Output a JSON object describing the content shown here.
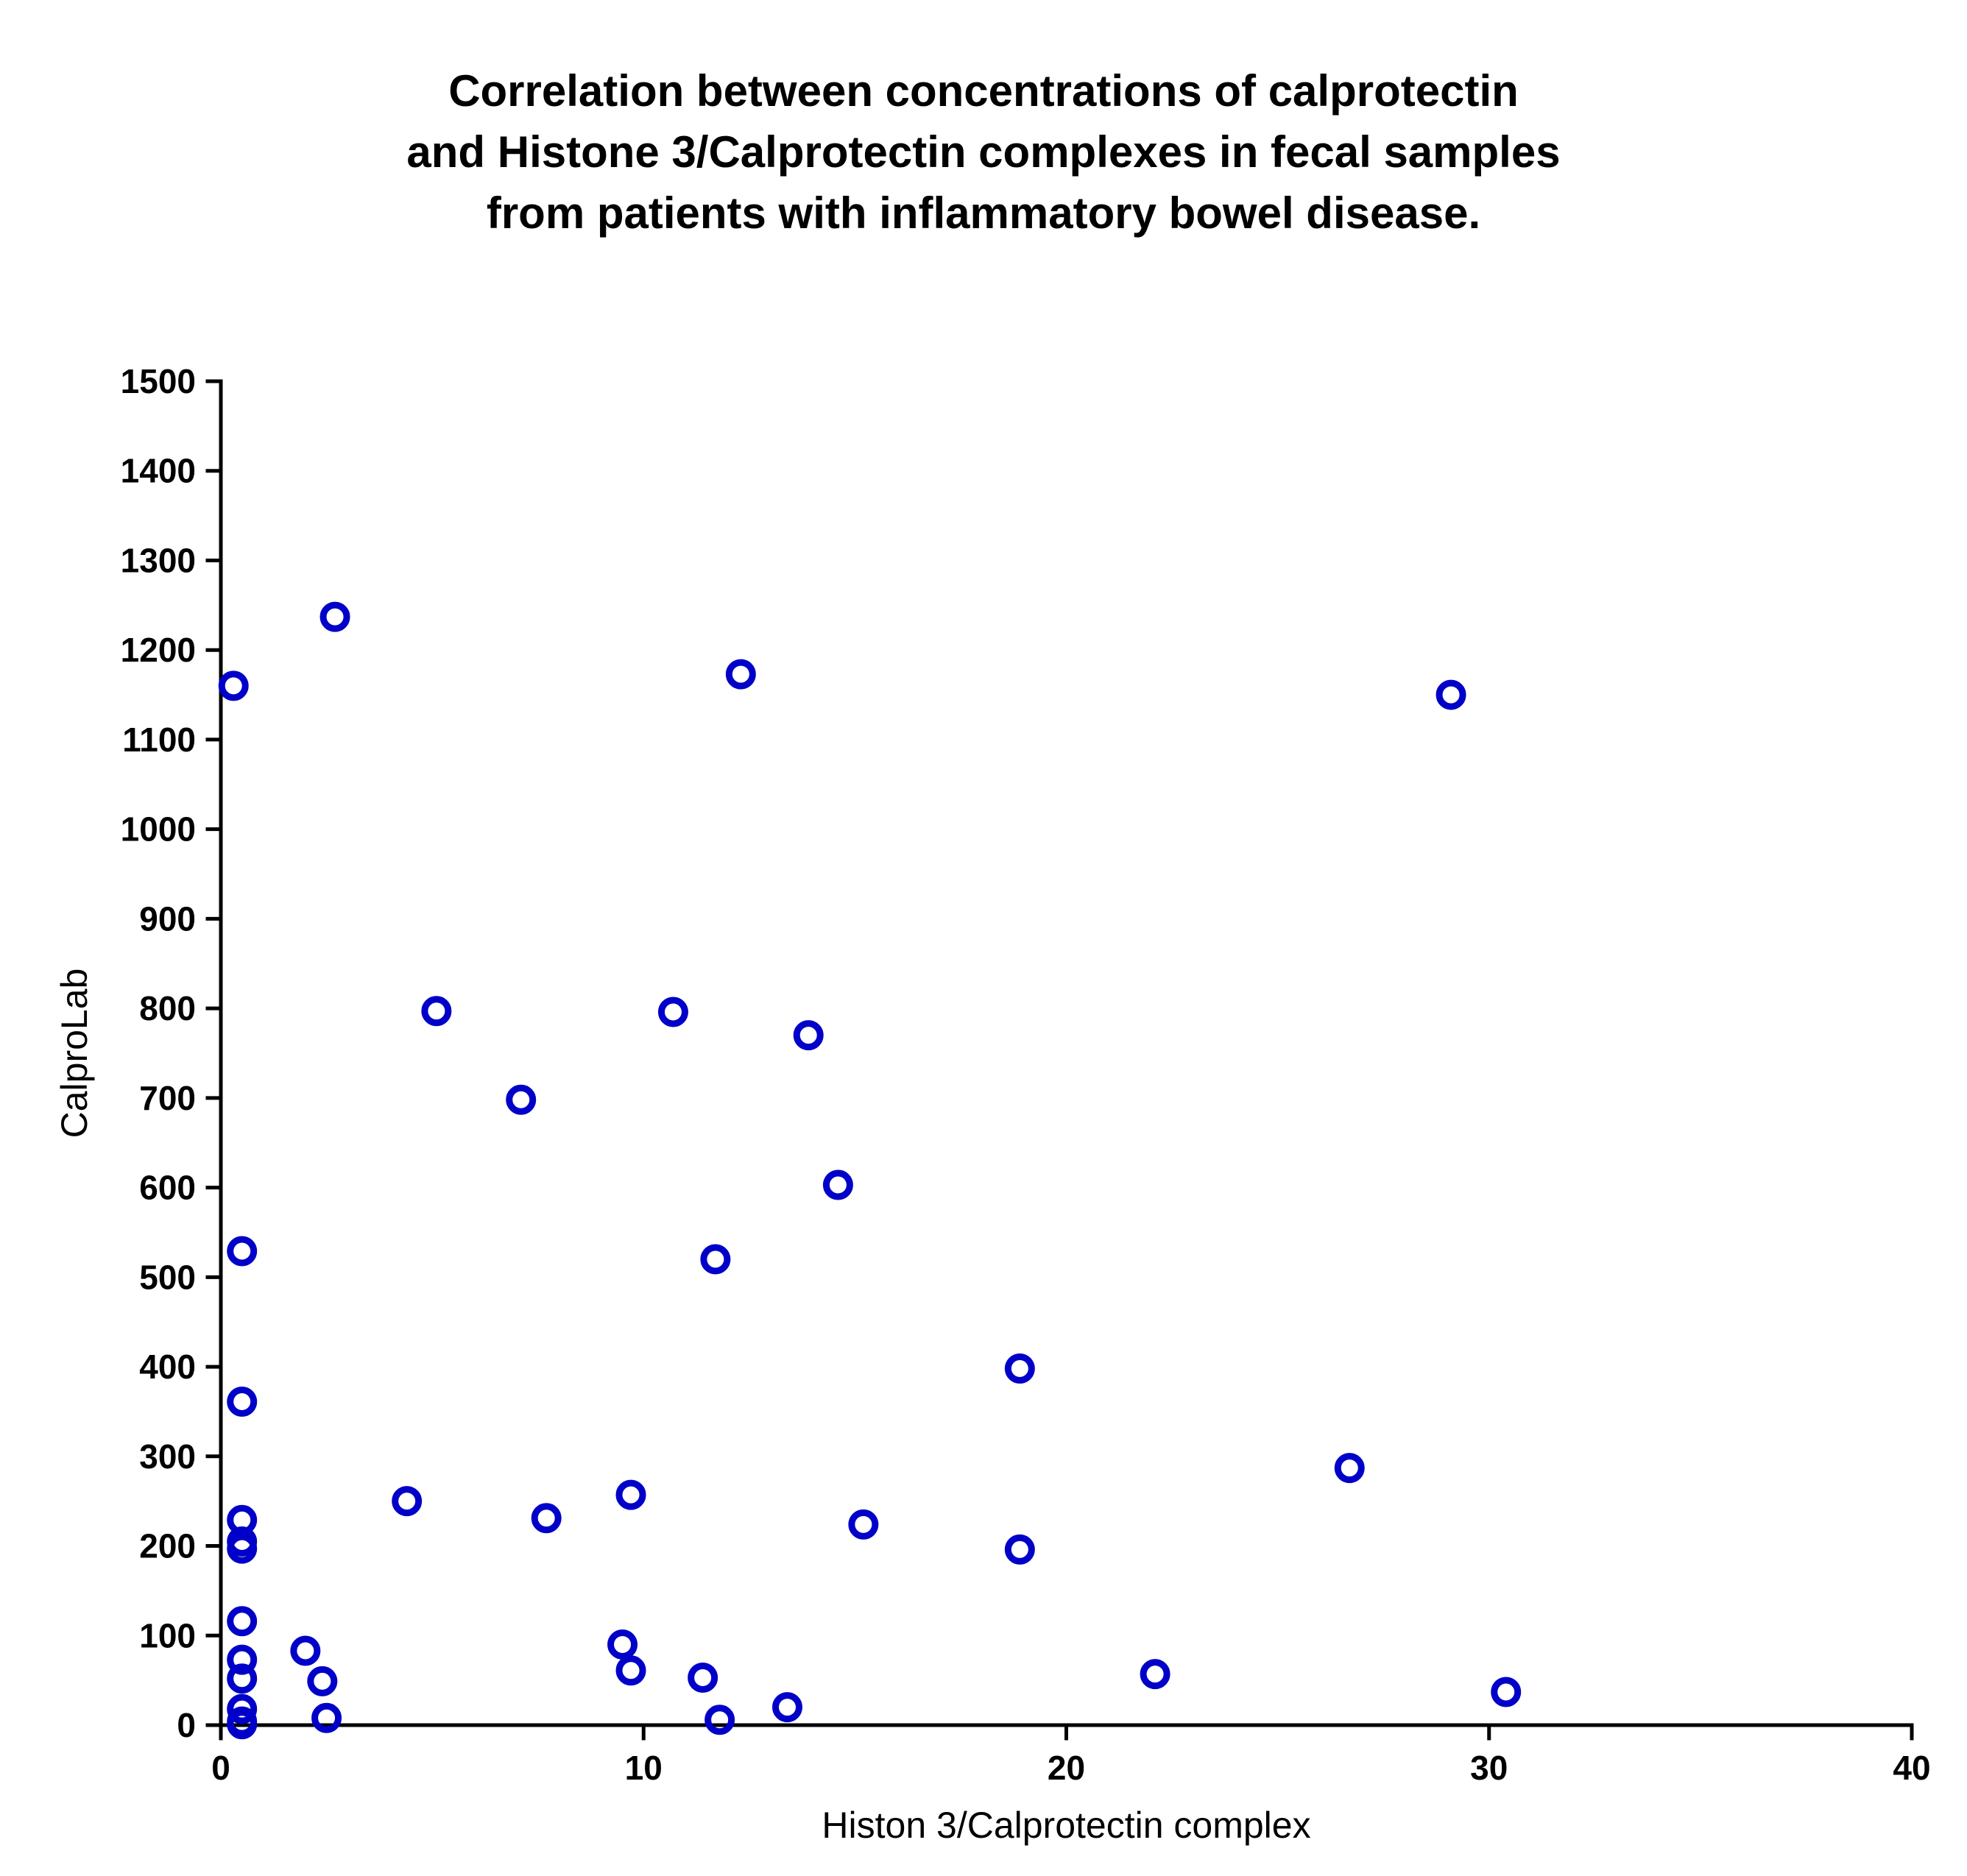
{
  "chart_data": {
    "type": "scatter",
    "title_lines": [
      "Correlation between concentrations of calprotectin",
      "and Histone 3/Calprotectin complexes in fecal samples",
      "from patients with inflammatory bowel disease."
    ],
    "xlabel": "Histon 3/Calprotectin complex",
    "ylabel": "CalproLab",
    "xlim": [
      0,
      40
    ],
    "ylim": [
      0,
      1500
    ],
    "xticks": [
      "0",
      "10",
      "20",
      "30",
      "40"
    ],
    "yticks": [
      "0",
      "100",
      "200",
      "300",
      "400",
      "500",
      "600",
      "700",
      "800",
      "900",
      "1000",
      "1100",
      "1200",
      "1300",
      "1400",
      "1500"
    ],
    "grid": false,
    "marker": "open-circle",
    "color": "#0000c8",
    "points": [
      {
        "x": 0.3,
        "y": 1160
      },
      {
        "x": 2.7,
        "y": 1237
      },
      {
        "x": 12.3,
        "y": 1173
      },
      {
        "x": 29.1,
        "y": 1150
      },
      {
        "x": 5.1,
        "y": 797
      },
      {
        "x": 10.7,
        "y": 796
      },
      {
        "x": 13.9,
        "y": 770
      },
      {
        "x": 7.1,
        "y": 698
      },
      {
        "x": 14.6,
        "y": 603
      },
      {
        "x": 0.5,
        "y": 529
      },
      {
        "x": 11.7,
        "y": 520
      },
      {
        "x": 18.9,
        "y": 398
      },
      {
        "x": 0.5,
        "y": 361
      },
      {
        "x": 26.7,
        "y": 287
      },
      {
        "x": 9.7,
        "y": 257
      },
      {
        "x": 4.4,
        "y": 250
      },
      {
        "x": 7.7,
        "y": 231
      },
      {
        "x": 0.5,
        "y": 229
      },
      {
        "x": 15.2,
        "y": 224
      },
      {
        "x": 0.5,
        "y": 205
      },
      {
        "x": 0.5,
        "y": 197
      },
      {
        "x": 18.9,
        "y": 196
      },
      {
        "x": 0.5,
        "y": 116
      },
      {
        "x": 9.5,
        "y": 90
      },
      {
        "x": 2.0,
        "y": 83
      },
      {
        "x": 0.5,
        "y": 73
      },
      {
        "x": 9.7,
        "y": 61
      },
      {
        "x": 22.1,
        "y": 57
      },
      {
        "x": 11.4,
        "y": 53
      },
      {
        "x": 0.5,
        "y": 52
      },
      {
        "x": 2.4,
        "y": 49
      },
      {
        "x": 30.4,
        "y": 37
      },
      {
        "x": 13.4,
        "y": 20
      },
      {
        "x": 0.5,
        "y": 18
      },
      {
        "x": 2.5,
        "y": 8
      },
      {
        "x": 11.8,
        "y": 6
      },
      {
        "x": 0.5,
        "y": 4
      },
      {
        "x": 0.5,
        "y": 1
      }
    ]
  }
}
